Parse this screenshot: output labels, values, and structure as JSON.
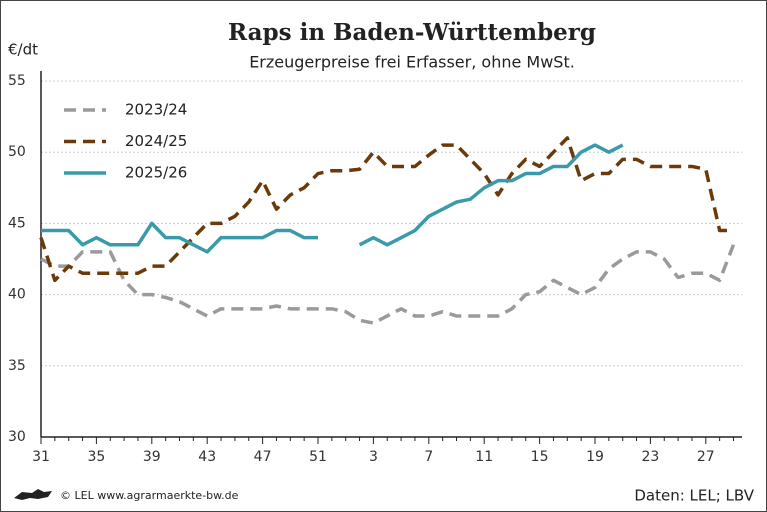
{
  "chart_data": {
    "type": "line",
    "title": "Raps in Baden-Württemberg",
    "subtitle": "Erzeugerpreise frei Erfasser, ohne MwSt.",
    "y_label": "€/dt",
    "source": "Daten: LEL; LBV",
    "copyright": "© LEL www.agrarmaerkte-bw.de",
    "categories": [
      "31",
      null,
      null,
      null,
      "35",
      null,
      null,
      null,
      "39",
      null,
      null,
      null,
      "43",
      null,
      null,
      null,
      "47",
      null,
      null,
      null,
      "51",
      null,
      null,
      null,
      "3",
      null,
      null,
      null,
      "7",
      null,
      null,
      null,
      "11",
      null,
      null,
      null,
      "15",
      null,
      null,
      null,
      "19",
      null,
      null,
      null,
      "23",
      null,
      null,
      null,
      "27",
      null,
      null
    ],
    "ylim": [
      30,
      55
    ],
    "yticks": [
      30,
      35,
      40,
      45,
      50,
      55
    ],
    "grid": true,
    "legend": "upper left",
    "series": [
      {
        "name": "2023/24",
        "color": "#9a9a9a",
        "dash": "dashed",
        "values": [
          42.5,
          42,
          42,
          43,
          43,
          43,
          41,
          40,
          40,
          39.8,
          39.5,
          39,
          38.5,
          39,
          39,
          39,
          39,
          39.2,
          39,
          39,
          39,
          39,
          38.8,
          38.2,
          38,
          38.5,
          39,
          38.5,
          38.5,
          38.8,
          38.5,
          38.5,
          38.5,
          38.5,
          39,
          40,
          40.2,
          41,
          40.5,
          40,
          40.5,
          41.8,
          42.5,
          43,
          43,
          42.5,
          41.2,
          41.5,
          41.5,
          41,
          43.5
        ]
      },
      {
        "name": "2024/25",
        "color": "#6b3a0a",
        "dash": "dashed",
        "values": [
          44,
          41,
          42,
          41.5,
          41.5,
          41.5,
          41.5,
          41.5,
          42,
          42,
          43,
          44,
          45,
          45,
          45.5,
          46.5,
          48,
          46,
          47,
          47.5,
          48.5,
          48.7,
          48.7,
          48.8,
          50,
          49,
          49,
          49,
          49.8,
          50.5,
          50.5,
          49.5,
          48.5,
          47,
          48.5,
          49.5,
          49,
          50,
          51,
          48,
          48.5,
          48.5,
          49.5,
          49.5,
          49,
          49,
          49,
          49,
          48.8,
          44.5,
          44.5
        ]
      },
      {
        "name": "2025/26",
        "color": "#3a9aaa",
        "dash": "solid",
        "values": [
          44.5,
          44.5,
          44.5,
          43.5,
          44,
          43.5,
          43.5,
          43.5,
          45,
          44,
          44,
          43.5,
          43,
          44,
          44,
          44,
          44,
          44.5,
          44.5,
          44,
          44,
          null,
          null,
          43.5,
          44,
          43.5,
          44,
          44.5,
          45.5,
          46,
          46.5,
          46.7,
          47.5,
          48,
          48,
          48.5,
          48.5,
          49,
          49,
          50,
          50.5,
          50,
          50.5,
          null,
          null,
          null,
          null,
          null,
          null,
          null,
          null
        ]
      }
    ]
  }
}
